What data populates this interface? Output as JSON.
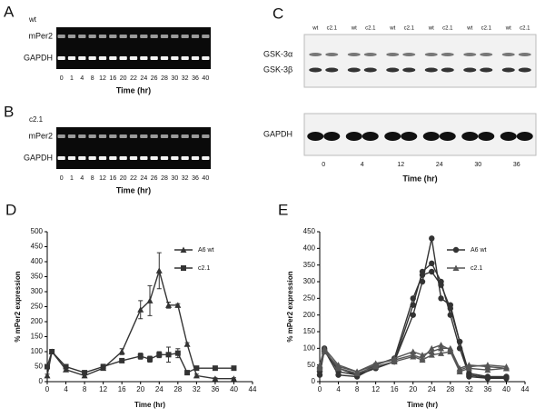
{
  "gels": {
    "A": {
      "letter": "A",
      "sample": "wt",
      "rows": [
        "mPer2",
        "GAPDH"
      ],
      "lanes": [
        0,
        1,
        4,
        8,
        12,
        16,
        20,
        22,
        24,
        26,
        28,
        30,
        32,
        36,
        40
      ],
      "xlabel": "Time (hr)"
    },
    "B": {
      "letter": "B",
      "sample": "c2.1",
      "rows": [
        "mPer2",
        "GAPDH"
      ],
      "lanes": [
        0,
        1,
        4,
        8,
        12,
        16,
        20,
        22,
        24,
        26,
        28,
        30,
        32,
        36,
        40
      ],
      "xlabel": "Time (hr)"
    },
    "C": {
      "letter": "C",
      "lane_labels": [
        "wt",
        "c2.1"
      ],
      "rows": [
        "GSK-3α",
        "GSK-3β"
      ],
      "lower_row": "GAPDH",
      "times": [
        0,
        4,
        12,
        24,
        30,
        36
      ],
      "xlabel": "Time (hr)"
    }
  },
  "chart_data": [
    {
      "type": "line",
      "letter": "D",
      "xlabel": "Time (hr)",
      "ylabel": "% mPer2 expression",
      "x": [
        0,
        1,
        4,
        8,
        12,
        16,
        20,
        22,
        24,
        26,
        28,
        30,
        32,
        36,
        40
      ],
      "xlim": [
        0,
        44
      ],
      "xticks": [
        0,
        4,
        8,
        12,
        16,
        20,
        24,
        28,
        32,
        36,
        40,
        44
      ],
      "ylim": [
        0,
        500
      ],
      "yticks": [
        0,
        50,
        100,
        150,
        200,
        250,
        300,
        350,
        400,
        450,
        500
      ],
      "series": [
        {
          "name": "A6 wt",
          "color": "#333333",
          "marker": "triangle",
          "values": [
            20,
            100,
            40,
            20,
            45,
            100,
            240,
            270,
            370,
            255,
            255,
            125,
            20,
            10,
            10
          ],
          "errors": [
            5,
            5,
            5,
            5,
            5,
            10,
            30,
            50,
            60,
            10,
            5,
            5,
            5,
            3,
            3
          ]
        },
        {
          "name": "c2.1",
          "color": "#333333",
          "marker": "square",
          "values": [
            50,
            100,
            50,
            30,
            50,
            70,
            85,
            75,
            90,
            90,
            95,
            30,
            45,
            45,
            45
          ],
          "errors": [
            5,
            5,
            5,
            5,
            8,
            5,
            10,
            10,
            10,
            25,
            15,
            5,
            5,
            5,
            5
          ]
        }
      ]
    },
    {
      "type": "line",
      "letter": "E",
      "xlabel": "Time (hr)",
      "ylabel": "% mPer2 expression",
      "x": [
        0,
        1,
        4,
        8,
        12,
        16,
        20,
        22,
        24,
        26,
        28,
        30,
        32,
        36,
        40
      ],
      "xlim": [
        0,
        44
      ],
      "xticks": [
        0,
        4,
        8,
        12,
        16,
        20,
        24,
        28,
        32,
        36,
        40,
        44
      ],
      "ylim": [
        0,
        450
      ],
      "yticks": [
        0,
        50,
        100,
        150,
        200,
        250,
        300,
        350,
        400,
        450
      ],
      "series": [
        {
          "name": "A6 wt",
          "color": "#333333",
          "marker": "circle",
          "values": [
            30,
            100,
            30,
            20,
            40,
            60,
            200,
            300,
            430,
            250,
            230,
            120,
            15,
            10,
            10
          ]
        },
        {
          "color": "#333333",
          "marker": "circle",
          "values": [
            20,
            95,
            20,
            15,
            45,
            60,
            230,
            330,
            355,
            300,
            200,
            100,
            20,
            12,
            12
          ]
        },
        {
          "color": "#333333",
          "marker": "circle",
          "values": [
            40,
            90,
            40,
            20,
            50,
            70,
            250,
            320,
            330,
            290,
            220,
            120,
            25,
            15,
            15
          ]
        },
        {
          "name": "c2.1",
          "color": "#555555",
          "marker": "triangle",
          "values": [
            50,
            100,
            50,
            30,
            50,
            70,
            90,
            80,
            90,
            100,
            100,
            40,
            50,
            45,
            40
          ]
        },
        {
          "color": "#555555",
          "marker": "triangle",
          "values": [
            40,
            95,
            40,
            25,
            45,
            60,
            75,
            65,
            80,
            85,
            90,
            30,
            40,
            35,
            40
          ]
        },
        {
          "color": "#555555",
          "marker": "triangle",
          "values": [
            45,
            90,
            45,
            30,
            55,
            65,
            80,
            70,
            100,
            110,
            95,
            35,
            45,
            50,
            45
          ]
        }
      ]
    }
  ]
}
